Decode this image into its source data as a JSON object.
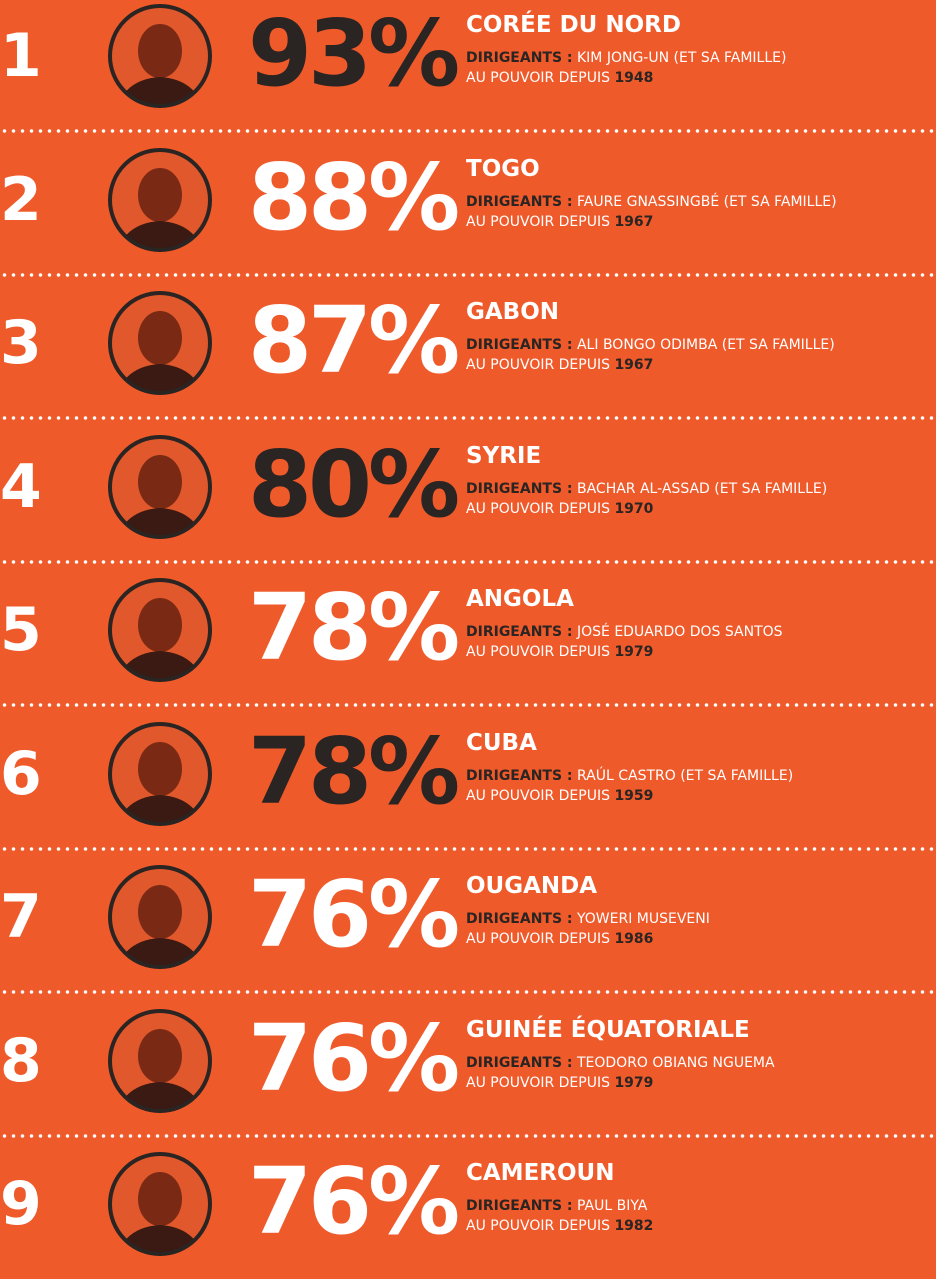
{
  "leader_label": "DIRIGEANTS :",
  "since_label": "AU POUVOIR DEPUIS",
  "items": [
    {
      "rank": "1",
      "percent": "93%",
      "percent_color": "#2a2422",
      "country": "CORÉE DU NORD",
      "leader": "KIM JONG-UN (ET SA FAMILLE)",
      "year": "1948"
    },
    {
      "rank": "2",
      "percent": "88%",
      "percent_color": "#ffffff",
      "country": "TOGO",
      "leader": "FAURE GNASSINGBÉ (ET SA FAMILLE)",
      "year": "1967"
    },
    {
      "rank": "3",
      "percent": "87%",
      "percent_color": "#ffffff",
      "country": "GABON",
      "leader": "ALI BONGO ODIMBA (ET SA FAMILLE)",
      "year": "1967"
    },
    {
      "rank": "4",
      "percent": "80%",
      "percent_color": "#2a2422",
      "country": "SYRIE",
      "leader": "BACHAR AL-ASSAD (ET SA FAMILLE)",
      "year": "1970"
    },
    {
      "rank": "5",
      "percent": "78%",
      "percent_color": "#ffffff",
      "country": "ANGOLA",
      "leader": "JOSÉ EDUARDO DOS SANTOS",
      "year": "1979"
    },
    {
      "rank": "6",
      "percent": "78%",
      "percent_color": "#2a2422",
      "country": "CUBA",
      "leader": "RAÚL CASTRO (ET SA FAMILLE)",
      "year": "1959"
    },
    {
      "rank": "7",
      "percent": "76%",
      "percent_color": "#ffffff",
      "country": "OUGANDA",
      "leader": "YOWERI MUSEVENI",
      "year": "1986"
    },
    {
      "rank": "8",
      "percent": "76%",
      "percent_color": "#ffffff",
      "country": "GUINÉE ÉQUATORIALE",
      "leader": "TEODORO OBIANG NGUEMA",
      "year": "1979"
    },
    {
      "rank": "9",
      "percent": "76%",
      "percent_color": "#ffffff",
      "country": "CAMEROUN",
      "leader": "PAUL BIYA",
      "year": "1982"
    }
  ]
}
